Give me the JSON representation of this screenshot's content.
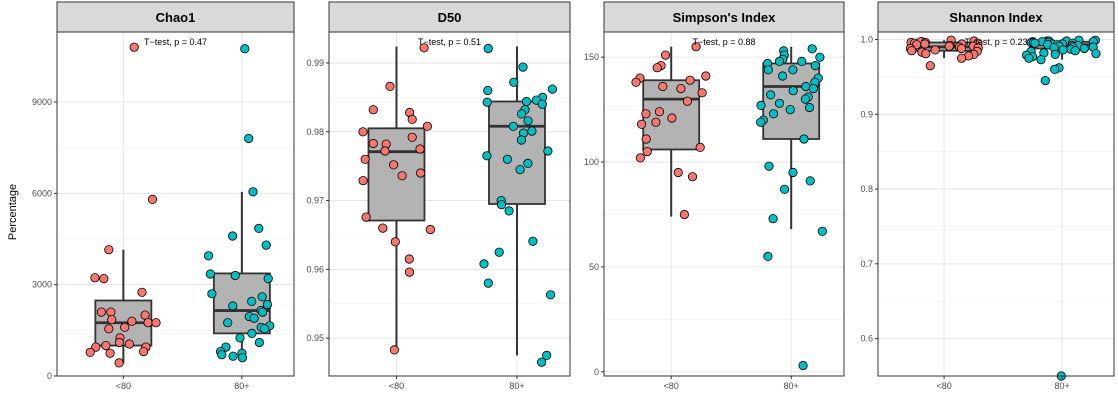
{
  "y_axis_label": "Percentage",
  "colors": {
    "group1": "#F8766D",
    "group2": "#00BFC4",
    "box_fill": "#B3B3B3",
    "strip_fill": "#D9D9D9"
  },
  "chart_data": [
    {
      "type": "boxplot",
      "title": "Chao1",
      "categories": [
        "<80",
        "80+"
      ],
      "annotation": "T−test, p = 0.47",
      "ylim": [
        0,
        11300
      ],
      "yticks": [
        0,
        3000,
        6000,
        9000
      ],
      "ytick_labels": [
        "0",
        "3000",
        "6000",
        "9000"
      ],
      "boxes": [
        {
          "category": "<80",
          "whisker_low": 430,
          "q1": 1000,
          "median": 1750,
          "q3": 2480,
          "whisker_high": 4150
        },
        {
          "category": "80+",
          "whisker_low": 700,
          "q1": 1400,
          "median": 2150,
          "q3": 3370,
          "whisker_high": 6050
        }
      ],
      "points": [
        {
          "category": "<80",
          "values": [
            10800,
            5800,
            4150,
            3230,
            3200,
            2750,
            2100,
            2100,
            2000,
            1850,
            1800,
            1750,
            1750,
            1600,
            1550,
            1250,
            1100,
            1050,
            1000,
            950,
            950,
            800,
            780,
            750,
            430
          ]
        },
        {
          "category": "80+",
          "values": [
            10750,
            7800,
            6050,
            4850,
            4600,
            4300,
            3950,
            3350,
            3300,
            3200,
            2700,
            2600,
            2450,
            2350,
            2300,
            2150,
            2100,
            1950,
            1900,
            1750,
            1650,
            1600,
            1550,
            1400,
            1250,
            1100,
            950,
            800,
            750,
            700,
            650,
            600
          ]
        }
      ]
    },
    {
      "type": "boxplot",
      "title": "D50",
      "categories": [
        "<80",
        "80+"
      ],
      "annotation": "T−test, p = 0.51",
      "ylim": [
        0.9445,
        0.9945
      ],
      "yticks": [
        0.95,
        0.96,
        0.97,
        0.98,
        0.99
      ],
      "ytick_labels": [
        "0.95",
        "0.96",
        "0.97",
        "0.98",
        "0.99"
      ],
      "boxes": [
        {
          "category": "<80",
          "whisker_low": 0.9483,
          "q1": 0.9671,
          "median": 0.9771,
          "q3": 0.9805,
          "whisker_high": 0.9924
        },
        {
          "category": "80+",
          "whisker_low": 0.9475,
          "q1": 0.9695,
          "median": 0.9808,
          "q3": 0.9844,
          "whisker_high": 0.9924
        }
      ],
      "points": [
        {
          "category": "<80",
          "values": [
            0.9922,
            0.9866,
            0.9832,
            0.9828,
            0.9818,
            0.9808,
            0.98,
            0.9792,
            0.9783,
            0.9782,
            0.9775,
            0.9772,
            0.976,
            0.9752,
            0.974,
            0.9736,
            0.9729,
            0.9676,
            0.966,
            0.9658,
            0.964,
            0.9615,
            0.9596,
            0.9483
          ]
        },
        {
          "category": "80+",
          "values": [
            0.9921,
            0.9894,
            0.9872,
            0.9862,
            0.986,
            0.985,
            0.9846,
            0.9844,
            0.9843,
            0.984,
            0.9832,
            0.9826,
            0.9816,
            0.9808,
            0.9801,
            0.9798,
            0.9788,
            0.9772,
            0.9765,
            0.976,
            0.9754,
            0.9745,
            0.97,
            0.9694,
            0.9685,
            0.9641,
            0.9625,
            0.9608,
            0.958,
            0.9563,
            0.9475,
            0.9465
          ]
        }
      ]
    },
    {
      "type": "boxplot",
      "title": "Simpson's Index",
      "categories": [
        "<80",
        "80+"
      ],
      "annotation": "T−test, p = 0.88",
      "ylim": [
        -2,
        162
      ],
      "yticks": [
        0,
        50,
        100,
        150
      ],
      "ytick_labels": [
        "0",
        "50",
        "100",
        "150"
      ],
      "boxes": [
        {
          "category": "<80",
          "whisker_low": 74,
          "q1": 106,
          "median": 130,
          "q3": 139,
          "whisker_high": 155
        },
        {
          "category": "80+",
          "whisker_low": 68,
          "q1": 111,
          "median": 136,
          "q3": 147,
          "whisker_high": 155
        }
      ],
      "points": [
        {
          "category": "<80",
          "values": [
            155,
            151,
            146,
            145,
            141,
            140,
            139,
            138,
            136,
            135,
            133,
            129,
            124,
            123,
            121,
            119,
            118,
            111,
            107,
            105,
            102,
            95,
            93,
            75
          ]
        },
        {
          "category": "80+",
          "values": [
            154,
            153,
            151,
            150,
            149,
            148,
            148,
            147,
            146,
            144,
            144,
            141,
            140,
            138,
            136,
            135,
            134,
            132,
            131,
            130,
            128,
            127,
            126,
            125,
            123,
            120,
            119,
            111,
            98,
            95,
            91,
            87,
            73,
            67,
            55,
            3
          ]
        }
      ]
    },
    {
      "type": "boxplot",
      "title": "Shannon Index",
      "categories": [
        "<80",
        "80+"
      ],
      "annotation": "T−test, p = 0.23",
      "ylim": [
        0.55,
        1.01
      ],
      "yticks": [
        0.6,
        0.7,
        0.8,
        0.9,
        1.0
      ],
      "ytick_labels": [
        "0.6",
        "0.7",
        "0.8",
        "0.9",
        "1.0"
      ],
      "boxes": [
        {
          "category": "<80",
          "whisker_low": 0.975,
          "q1": 0.985,
          "median": 0.99,
          "q3": 0.996,
          "whisker_high": 0.999
        },
        {
          "category": "80+",
          "whisker_low": 0.973,
          "q1": 0.988,
          "median": 0.993,
          "q3": 0.997,
          "whisker_high": 0.999
        }
      ],
      "points": [
        {
          "category": "<80",
          "values": [
            0.999,
            0.998,
            0.997,
            0.997,
            0.996,
            0.996,
            0.995,
            0.995,
            0.994,
            0.994,
            0.993,
            0.992,
            0.991,
            0.991,
            0.99,
            0.989,
            0.988,
            0.988,
            0.986,
            0.985,
            0.984,
            0.983,
            0.981,
            0.98,
            0.978,
            0.975,
            0.965
          ]
        },
        {
          "category": "80+",
          "values": [
            0.999,
            0.999,
            0.998,
            0.998,
            0.998,
            0.997,
            0.997,
            0.997,
            0.996,
            0.996,
            0.996,
            0.995,
            0.995,
            0.994,
            0.994,
            0.994,
            0.993,
            0.993,
            0.992,
            0.992,
            0.991,
            0.99,
            0.99,
            0.989,
            0.988,
            0.987,
            0.986,
            0.985,
            0.984,
            0.982,
            0.981,
            0.98,
            0.979,
            0.977,
            0.975,
            0.973,
            0.962,
            0.96,
            0.945,
            0.55
          ]
        }
      ]
    }
  ]
}
